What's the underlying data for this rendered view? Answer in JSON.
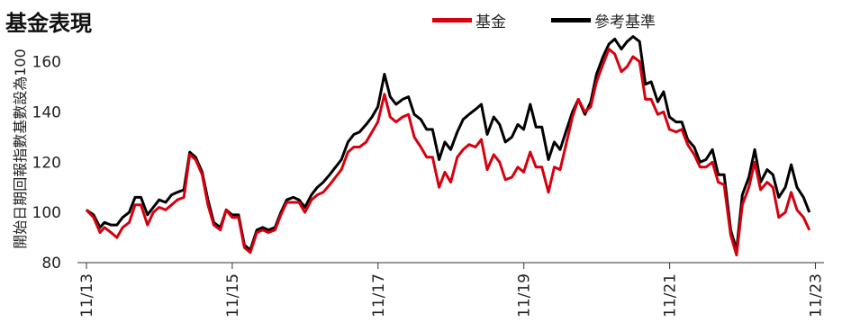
{
  "chart_data": {
    "type": "line",
    "title": "基金表現",
    "ylabel": "開始日期回報指數基數設為100",
    "ylim": [
      80,
      172
    ],
    "yticks": [
      80,
      100,
      120,
      140,
      160
    ],
    "xlim": [
      2013.833,
      2023.95
    ],
    "xticks": [
      {
        "x": 2013.833,
        "label": "11/13"
      },
      {
        "x": 2015.833,
        "label": "11/15"
      },
      {
        "x": 2017.833,
        "label": "11/17"
      },
      {
        "x": 2019.833,
        "label": "11/19"
      },
      {
        "x": 2021.833,
        "label": "11/21"
      },
      {
        "x": 2023.833,
        "label": "11/23"
      }
    ],
    "series": [
      {
        "name": "參考基準",
        "color": "#000000",
        "points": [
          [
            2013.83,
            101
          ],
          [
            2013.93,
            99
          ],
          [
            2014.02,
            94
          ],
          [
            2014.08,
            96
          ],
          [
            2014.17,
            95
          ],
          [
            2014.25,
            95
          ],
          [
            2014.33,
            98
          ],
          [
            2014.42,
            100
          ],
          [
            2014.5,
            106
          ],
          [
            2014.58,
            106
          ],
          [
            2014.67,
            99
          ],
          [
            2014.75,
            102
          ],
          [
            2014.83,
            105
          ],
          [
            2014.92,
            104
          ],
          [
            2015.0,
            107
          ],
          [
            2015.08,
            108
          ],
          [
            2015.17,
            109
          ],
          [
            2015.25,
            124
          ],
          [
            2015.33,
            122
          ],
          [
            2015.42,
            116
          ],
          [
            2015.5,
            105
          ],
          [
            2015.58,
            96
          ],
          [
            2015.67,
            94
          ],
          [
            2015.75,
            101
          ],
          [
            2015.83,
            99
          ],
          [
            2015.92,
            99
          ],
          [
            2016.0,
            87
          ],
          [
            2016.08,
            85
          ],
          [
            2016.17,
            93
          ],
          [
            2016.25,
            94
          ],
          [
            2016.33,
            93
          ],
          [
            2016.42,
            94
          ],
          [
            2016.5,
            100
          ],
          [
            2016.58,
            105
          ],
          [
            2016.67,
            106
          ],
          [
            2016.75,
            105
          ],
          [
            2016.83,
            102
          ],
          [
            2016.92,
            107
          ],
          [
            2017.0,
            110
          ],
          [
            2017.08,
            112
          ],
          [
            2017.17,
            115
          ],
          [
            2017.25,
            118
          ],
          [
            2017.33,
            121
          ],
          [
            2017.42,
            128
          ],
          [
            2017.5,
            131
          ],
          [
            2017.58,
            132
          ],
          [
            2017.67,
            135
          ],
          [
            2017.75,
            138
          ],
          [
            2017.83,
            142
          ],
          [
            2017.92,
            155
          ],
          [
            2018.0,
            146
          ],
          [
            2018.08,
            143
          ],
          [
            2018.17,
            145
          ],
          [
            2018.25,
            146
          ],
          [
            2018.33,
            139
          ],
          [
            2018.42,
            137
          ],
          [
            2018.5,
            133
          ],
          [
            2018.58,
            133
          ],
          [
            2018.67,
            121
          ],
          [
            2018.75,
            128
          ],
          [
            2018.83,
            125
          ],
          [
            2018.92,
            132
          ],
          [
            2019.0,
            137
          ],
          [
            2019.08,
            139
          ],
          [
            2019.17,
            141
          ],
          [
            2019.25,
            143
          ],
          [
            2019.33,
            131
          ],
          [
            2019.42,
            138
          ],
          [
            2019.5,
            135
          ],
          [
            2019.58,
            128
          ],
          [
            2019.67,
            130
          ],
          [
            2019.75,
            135
          ],
          [
            2019.83,
            133
          ],
          [
            2019.92,
            143
          ],
          [
            2020.0,
            134
          ],
          [
            2020.08,
            134
          ],
          [
            2020.17,
            121
          ],
          [
            2020.25,
            128
          ],
          [
            2020.33,
            125
          ],
          [
            2020.42,
            133
          ],
          [
            2020.5,
            140
          ],
          [
            2020.58,
            145
          ],
          [
            2020.67,
            139
          ],
          [
            2020.75,
            144
          ],
          [
            2020.83,
            155
          ],
          [
            2020.92,
            162
          ],
          [
            2021.0,
            167
          ],
          [
            2021.08,
            169
          ],
          [
            2021.17,
            165
          ],
          [
            2021.25,
            168
          ],
          [
            2021.33,
            170
          ],
          [
            2021.42,
            168
          ],
          [
            2021.5,
            151
          ],
          [
            2021.58,
            152
          ],
          [
            2021.67,
            144
          ],
          [
            2021.75,
            148
          ],
          [
            2021.83,
            138
          ],
          [
            2021.92,
            136
          ],
          [
            2022.0,
            136
          ],
          [
            2022.08,
            129
          ],
          [
            2022.17,
            126
          ],
          [
            2022.25,
            120
          ],
          [
            2022.33,
            121
          ],
          [
            2022.42,
            125
          ],
          [
            2022.5,
            115
          ],
          [
            2022.58,
            115
          ],
          [
            2022.67,
            93
          ],
          [
            2022.75,
            85
          ],
          [
            2022.83,
            107
          ],
          [
            2022.92,
            114
          ],
          [
            2023.0,
            125
          ],
          [
            2023.08,
            112
          ],
          [
            2023.17,
            117
          ],
          [
            2023.25,
            115
          ],
          [
            2023.33,
            106
          ],
          [
            2023.42,
            110
          ],
          [
            2023.5,
            119
          ],
          [
            2023.58,
            110
          ],
          [
            2023.67,
            106
          ],
          [
            2023.75,
            100
          ]
        ]
      },
      {
        "name": "基金",
        "color": "#d7000f",
        "points": [
          [
            2013.83,
            101
          ],
          [
            2013.93,
            98
          ],
          [
            2014.02,
            92
          ],
          [
            2014.08,
            94
          ],
          [
            2014.17,
            92
          ],
          [
            2014.25,
            90
          ],
          [
            2014.33,
            94
          ],
          [
            2014.42,
            96
          ],
          [
            2014.5,
            103
          ],
          [
            2014.58,
            103
          ],
          [
            2014.67,
            95
          ],
          [
            2014.75,
            100
          ],
          [
            2014.83,
            102
          ],
          [
            2014.92,
            101
          ],
          [
            2015.0,
            103
          ],
          [
            2015.08,
            105
          ],
          [
            2015.17,
            106
          ],
          [
            2015.25,
            123
          ],
          [
            2015.33,
            121
          ],
          [
            2015.42,
            115
          ],
          [
            2015.5,
            103
          ],
          [
            2015.58,
            95
          ],
          [
            2015.67,
            93
          ],
          [
            2015.75,
            101
          ],
          [
            2015.83,
            98
          ],
          [
            2015.92,
            98
          ],
          [
            2016.0,
            86
          ],
          [
            2016.08,
            84
          ],
          [
            2016.17,
            92
          ],
          [
            2016.25,
            93
          ],
          [
            2016.33,
            92
          ],
          [
            2016.42,
            93
          ],
          [
            2016.5,
            99
          ],
          [
            2016.58,
            104
          ],
          [
            2016.67,
            104
          ],
          [
            2016.75,
            104
          ],
          [
            2016.83,
            100
          ],
          [
            2016.92,
            105
          ],
          [
            2017.0,
            107
          ],
          [
            2017.08,
            108
          ],
          [
            2017.17,
            111
          ],
          [
            2017.25,
            114
          ],
          [
            2017.33,
            117
          ],
          [
            2017.42,
            124
          ],
          [
            2017.5,
            126
          ],
          [
            2017.58,
            126
          ],
          [
            2017.67,
            128
          ],
          [
            2017.75,
            132
          ],
          [
            2017.83,
            136
          ],
          [
            2017.92,
            147
          ],
          [
            2018.0,
            138
          ],
          [
            2018.08,
            136
          ],
          [
            2018.17,
            138
          ],
          [
            2018.25,
            139
          ],
          [
            2018.33,
            130
          ],
          [
            2018.42,
            126
          ],
          [
            2018.5,
            122
          ],
          [
            2018.58,
            122
          ],
          [
            2018.67,
            110
          ],
          [
            2018.75,
            116
          ],
          [
            2018.83,
            112
          ],
          [
            2018.92,
            122
          ],
          [
            2019.0,
            125
          ],
          [
            2019.08,
            127
          ],
          [
            2019.17,
            126
          ],
          [
            2019.25,
            129
          ],
          [
            2019.33,
            117
          ],
          [
            2019.42,
            123
          ],
          [
            2019.5,
            120
          ],
          [
            2019.58,
            113
          ],
          [
            2019.67,
            114
          ],
          [
            2019.75,
            118
          ],
          [
            2019.83,
            116
          ],
          [
            2019.92,
            124
          ],
          [
            2020.0,
            118
          ],
          [
            2020.08,
            118
          ],
          [
            2020.17,
            108
          ],
          [
            2020.25,
            118
          ],
          [
            2020.33,
            117
          ],
          [
            2020.42,
            128
          ],
          [
            2020.5,
            138
          ],
          [
            2020.58,
            145
          ],
          [
            2020.67,
            140
          ],
          [
            2020.75,
            142
          ],
          [
            2020.83,
            152
          ],
          [
            2020.92,
            159
          ],
          [
            2021.0,
            165
          ],
          [
            2021.08,
            163
          ],
          [
            2021.17,
            156
          ],
          [
            2021.25,
            158
          ],
          [
            2021.33,
            162
          ],
          [
            2021.42,
            160
          ],
          [
            2021.5,
            145
          ],
          [
            2021.58,
            145
          ],
          [
            2021.67,
            139
          ],
          [
            2021.75,
            140
          ],
          [
            2021.83,
            133
          ],
          [
            2021.92,
            132
          ],
          [
            2022.0,
            133
          ],
          [
            2022.08,
            127
          ],
          [
            2022.17,
            123
          ],
          [
            2022.25,
            118
          ],
          [
            2022.33,
            118
          ],
          [
            2022.42,
            120
          ],
          [
            2022.5,
            112
          ],
          [
            2022.58,
            111
          ],
          [
            2022.67,
            91
          ],
          [
            2022.75,
            83
          ],
          [
            2022.83,
            103
          ],
          [
            2022.92,
            110
          ],
          [
            2023.0,
            120
          ],
          [
            2023.08,
            109
          ],
          [
            2023.17,
            112
          ],
          [
            2023.25,
            110
          ],
          [
            2023.33,
            98
          ],
          [
            2023.42,
            100
          ],
          [
            2023.5,
            108
          ],
          [
            2023.58,
            101
          ],
          [
            2023.67,
            98
          ],
          [
            2023.75,
            93
          ]
        ]
      }
    ]
  },
  "legend": [
    {
      "label": "基金",
      "color": "#d7000f"
    },
    {
      "label": "參考基準",
      "color": "#000000"
    }
  ]
}
